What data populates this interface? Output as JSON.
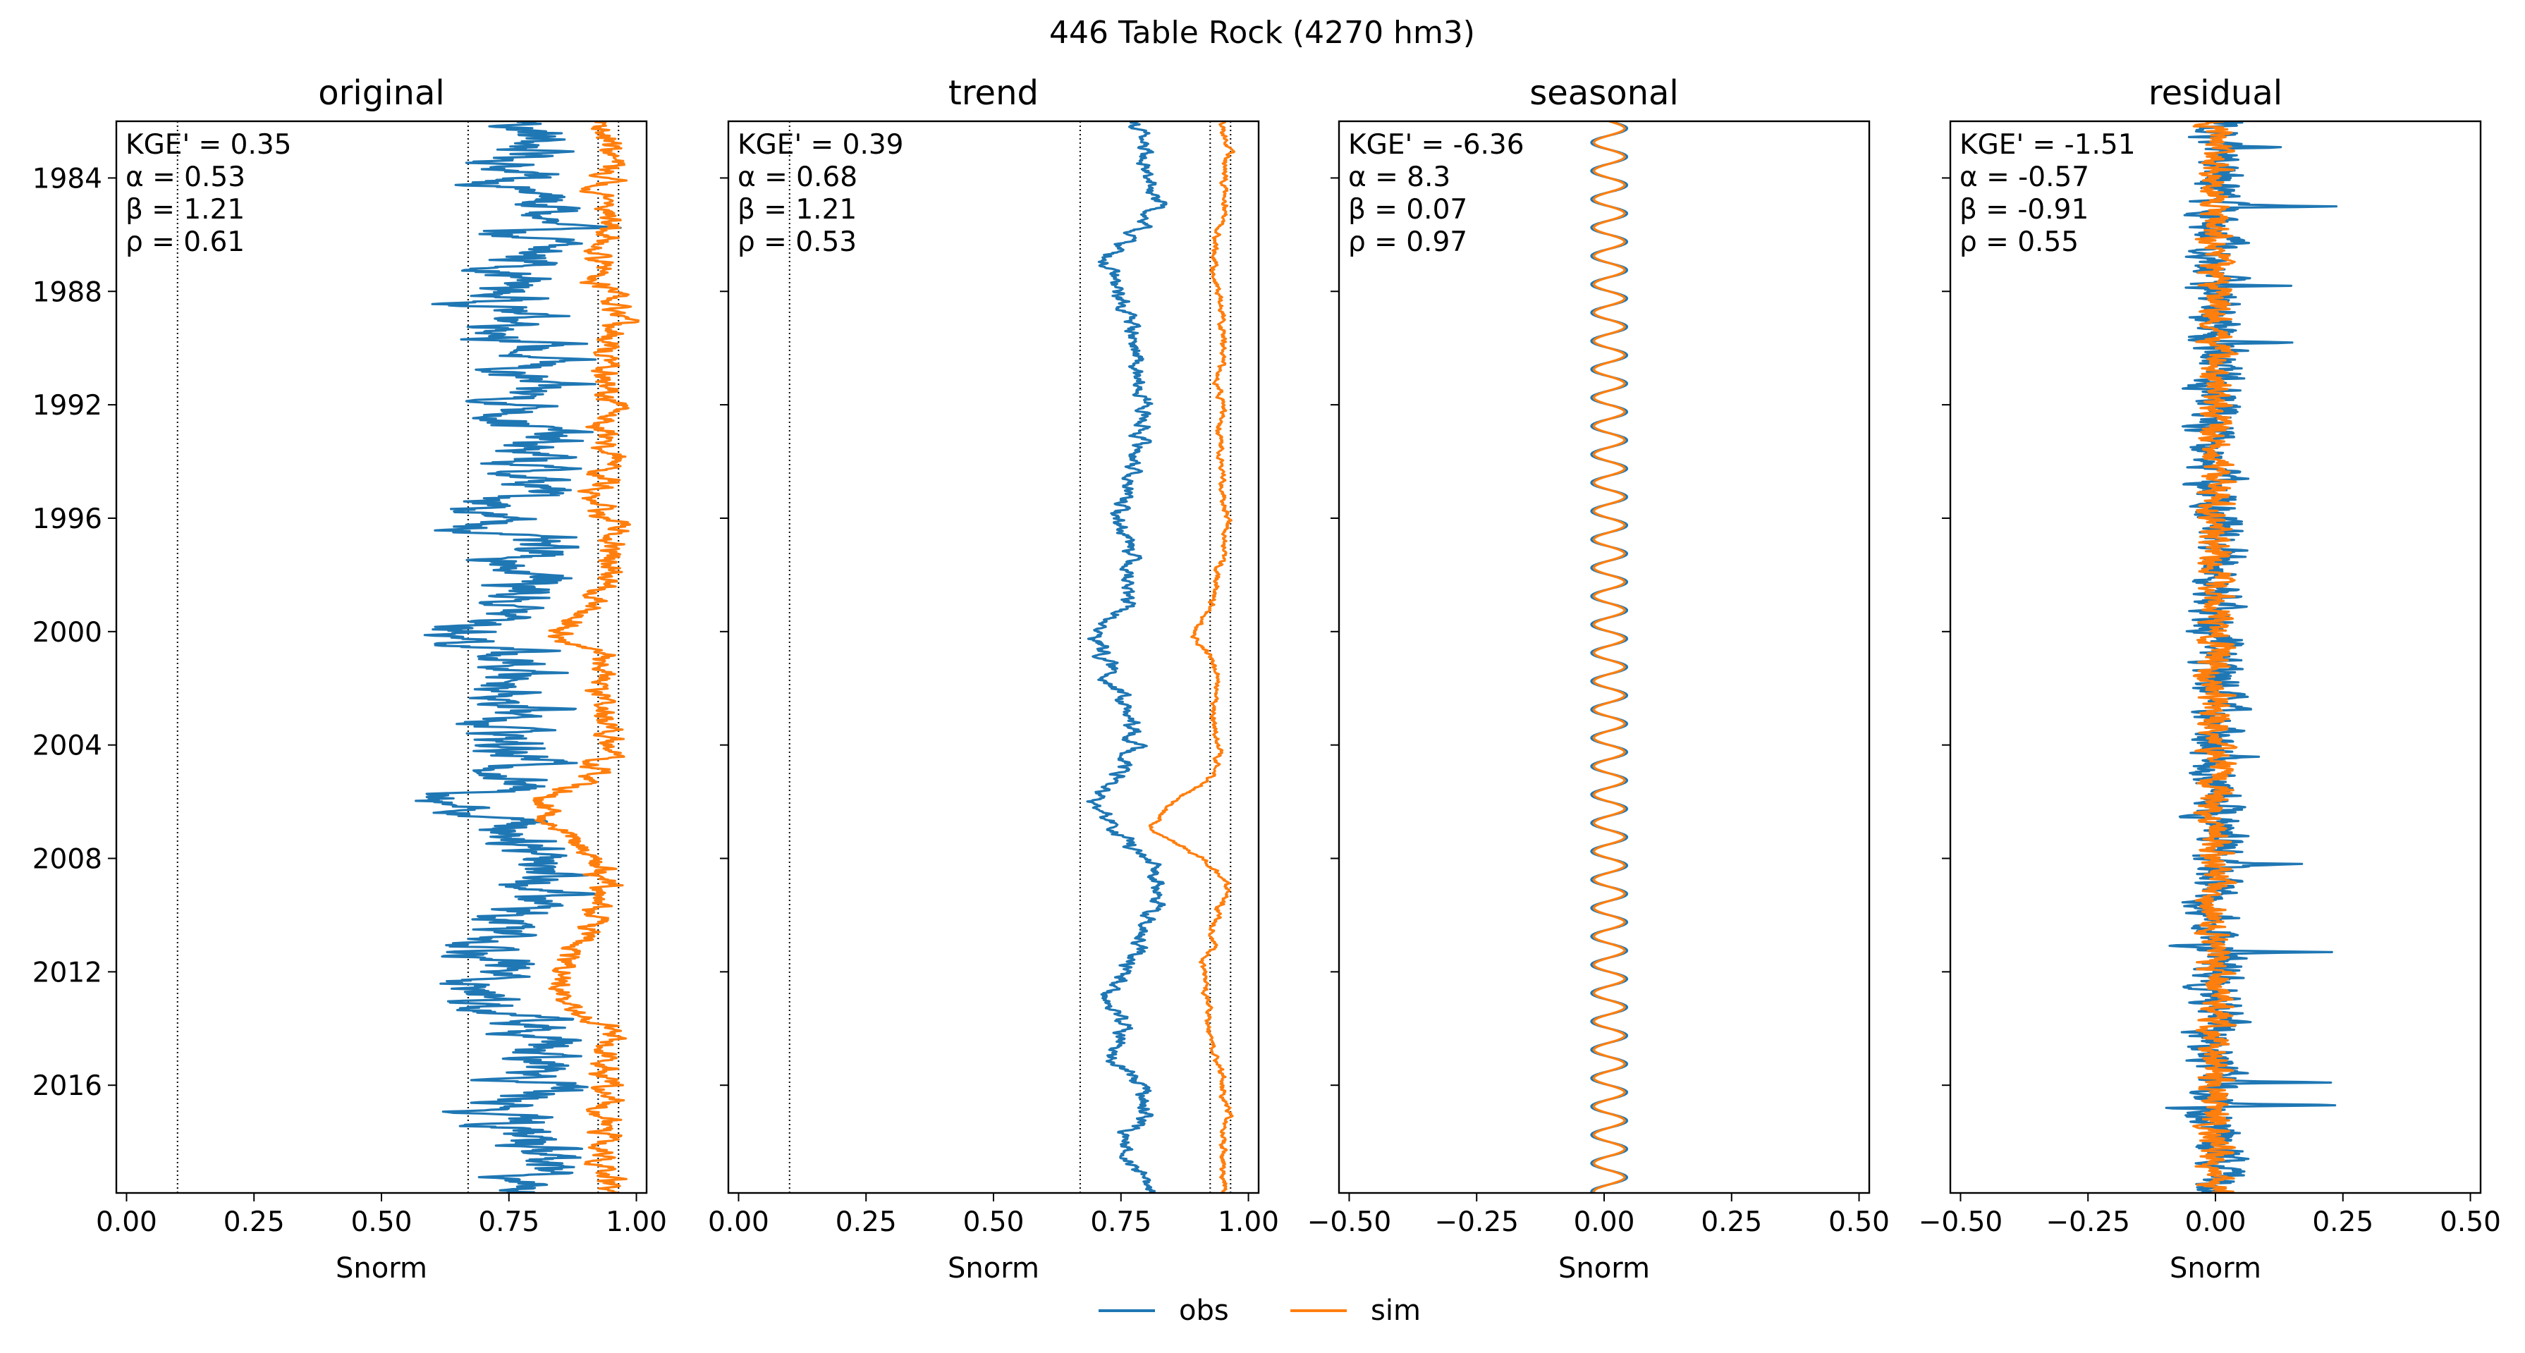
{
  "title": "446  Table Rock (4270 hm3)",
  "legend": {
    "obs_label": "obs",
    "sim_label": "sim"
  },
  "colors": {
    "obs": "#1f77b4",
    "sim": "#ff7f0e"
  },
  "chart_data": [
    {
      "type": "line",
      "title": "original",
      "xlabel": "Snorm",
      "ylabel": "",
      "xlim": [
        -0.02,
        1.02
      ],
      "ylim": [
        1982.0,
        2019.8
      ],
      "y_inverted": true,
      "yticks": [
        "1984",
        "1988",
        "1992",
        "1996",
        "2000",
        "2004",
        "2008",
        "2012",
        "2016"
      ],
      "xticks": [
        "0.00",
        "0.25",
        "0.50",
        "0.75",
        "1.00"
      ],
      "vlines": [
        0.1,
        0.67,
        0.925,
        0.965
      ],
      "stats": [
        "KGE' = 0.35",
        "α = 0.53",
        "β = 1.21",
        "ρ = 0.61"
      ],
      "series": [
        {
          "name": "obs",
          "key": "obs",
          "t": [
            1982.0,
            1983,
            1984,
            1985,
            1986,
            1987,
            1988,
            1989,
            1990,
            1991,
            1992,
            1993,
            1994,
            1995,
            1996,
            1997,
            1998,
            1999,
            2000,
            2001,
            2002,
            2003,
            2004,
            2005,
            2006,
            2007,
            2008,
            2009,
            2010,
            2011,
            2012,
            2013,
            2014,
            2015,
            2016,
            2017,
            2018,
            2019,
            2019.8
          ],
          "x": [
            0.78,
            0.8,
            0.75,
            0.82,
            0.77,
            0.8,
            0.73,
            0.78,
            0.8,
            0.75,
            0.79,
            0.8,
            0.77,
            0.79,
            0.7,
            0.76,
            0.8,
            0.78,
            0.66,
            0.75,
            0.78,
            0.77,
            0.74,
            0.8,
            0.67,
            0.78,
            0.85,
            0.82,
            0.78,
            0.75,
            0.72,
            0.7,
            0.8,
            0.78,
            0.85,
            0.72,
            0.8,
            0.82,
            0.83
          ],
          "amp": 0.055
        },
        {
          "name": "sim",
          "key": "sim",
          "t": [
            1982.0,
            1983,
            1984,
            1985,
            1986,
            1987,
            1988,
            1989,
            1990,
            1991,
            1992,
            1993,
            1994,
            1995,
            1996,
            1997,
            1998,
            1999,
            2000,
            2001,
            2002,
            2003,
            2004,
            2005,
            2006,
            2007,
            2008,
            2009,
            2010,
            2011,
            2012,
            2013,
            2014,
            2015,
            2016,
            2017,
            2018,
            2019,
            2019.8
          ],
          "x": [
            0.93,
            0.95,
            0.94,
            0.95,
            0.94,
            0.93,
            0.94,
            0.95,
            0.94,
            0.93,
            0.95,
            0.94,
            0.95,
            0.93,
            0.94,
            0.95,
            0.94,
            0.93,
            0.86,
            0.93,
            0.94,
            0.93,
            0.94,
            0.93,
            0.8,
            0.85,
            0.93,
            0.94,
            0.92,
            0.88,
            0.85,
            0.84,
            0.93,
            0.94,
            0.93,
            0.94,
            0.94,
            0.93,
            0.94
          ],
          "amp": 0.018
        }
      ]
    },
    {
      "type": "line",
      "title": "trend",
      "xlabel": "Snorm",
      "ylabel": "",
      "xlim": [
        -0.02,
        1.02
      ],
      "ylim": [
        1982.0,
        2019.8
      ],
      "y_inverted": true,
      "xticks": [
        "0.00",
        "0.25",
        "0.50",
        "0.75",
        "1.00"
      ],
      "vlines": [
        0.1,
        0.67,
        0.925,
        0.965
      ],
      "stats": [
        "KGE' = 0.39",
        "α = 0.68",
        "β = 1.21",
        "ρ = 0.53"
      ],
      "series": [
        {
          "name": "obs",
          "key": "obs",
          "t": [
            1982.0,
            1983,
            1984,
            1985,
            1986,
            1987,
            1988,
            1989,
            1990,
            1991,
            1992,
            1993,
            1994,
            1995,
            1996,
            1997,
            1998,
            1999,
            2000,
            2001,
            2002,
            2003,
            2004,
            2005,
            2006,
            2007,
            2008,
            2009,
            2010,
            2011,
            2012,
            2013,
            2014,
            2015,
            2016,
            2017,
            2018,
            2019,
            2019.8
          ],
          "x": [
            0.78,
            0.79,
            0.8,
            0.82,
            0.77,
            0.72,
            0.74,
            0.77,
            0.78,
            0.77,
            0.8,
            0.79,
            0.78,
            0.76,
            0.74,
            0.78,
            0.77,
            0.76,
            0.7,
            0.72,
            0.74,
            0.76,
            0.78,
            0.75,
            0.69,
            0.74,
            0.79,
            0.84,
            0.8,
            0.78,
            0.76,
            0.72,
            0.76,
            0.73,
            0.79,
            0.8,
            0.75,
            0.79,
            0.81
          ],
          "amp": 0.01
        },
        {
          "name": "sim",
          "key": "sim",
          "t": [
            1982.0,
            1983,
            1984,
            1985,
            1986,
            1987,
            1988,
            1989,
            1990,
            1991,
            1992,
            1993,
            1994,
            1995,
            1996,
            1997,
            1998,
            1999,
            2000,
            2001,
            2002,
            2003,
            2004,
            2005,
            2006,
            2007,
            2008,
            2009,
            2010,
            2011,
            2012,
            2013,
            2014,
            2015,
            2016,
            2017,
            2018,
            2019,
            2019.8
          ],
          "x": [
            0.95,
            0.96,
            0.95,
            0.96,
            0.94,
            0.93,
            0.94,
            0.95,
            0.95,
            0.94,
            0.95,
            0.94,
            0.95,
            0.95,
            0.96,
            0.95,
            0.94,
            0.93,
            0.89,
            0.93,
            0.94,
            0.93,
            0.94,
            0.94,
            0.85,
            0.81,
            0.91,
            0.96,
            0.94,
            0.93,
            0.91,
            0.92,
            0.92,
            0.94,
            0.95,
            0.96,
            0.95,
            0.95,
            0.95
          ],
          "amp": 0.004
        }
      ]
    },
    {
      "type": "line",
      "title": "seasonal",
      "xlabel": "Snorm",
      "ylabel": "",
      "xlim": [
        -0.52,
        0.52
      ],
      "ylim": [
        1982.0,
        2019.8
      ],
      "y_inverted": true,
      "xticks": [
        "−0.50",
        "−0.25",
        "0.00",
        "0.25",
        "0.50"
      ],
      "vlines": [],
      "stats": [
        "KGE' = -6.36",
        "α = 8.3",
        "β = 0.07",
        "ρ = 0.97"
      ],
      "series": [
        {
          "name": "obs",
          "key": "obs",
          "kind": "sine",
          "center": 0.01,
          "amp": 0.035,
          "period": 1.0
        },
        {
          "name": "sim",
          "key": "sim",
          "kind": "sine",
          "center": 0.01,
          "amp": 0.03,
          "period": 1.0
        }
      ]
    },
    {
      "type": "line",
      "title": "residual",
      "xlabel": "Snorm",
      "ylabel": "",
      "xlim": [
        -0.52,
        0.52
      ],
      "ylim": [
        1982.0,
        2019.8
      ],
      "y_inverted": true,
      "xticks": [
        "−0.50",
        "−0.25",
        "0.00",
        "0.25",
        "0.50"
      ],
      "vlines": [],
      "stats": [
        "KGE' = -1.51",
        "α = -0.57",
        "β = -0.91",
        "ρ = 0.55"
      ],
      "series": [
        {
          "name": "obs",
          "key": "obs",
          "kind": "noise",
          "center": 0.0,
          "amp": 0.04,
          "spikes": [
            [
              1982.9,
              0.16
            ],
            [
              1985.0,
              0.2
            ],
            [
              1987.8,
              0.12
            ],
            [
              1989.8,
              0.14
            ],
            [
              1990.5,
              0.08
            ],
            [
              2008.2,
              0.17
            ],
            [
              2011.1,
              -0.1
            ],
            [
              2011.3,
              0.25
            ],
            [
              2015.9,
              0.24
            ],
            [
              2016.7,
              0.22
            ],
            [
              2016.8,
              -0.08
            ],
            [
              2004.4,
              0.09
            ]
          ]
        },
        {
          "name": "sim",
          "key": "sim",
          "kind": "noise",
          "center": 0.0,
          "amp": 0.025,
          "spikes": []
        }
      ]
    }
  ]
}
